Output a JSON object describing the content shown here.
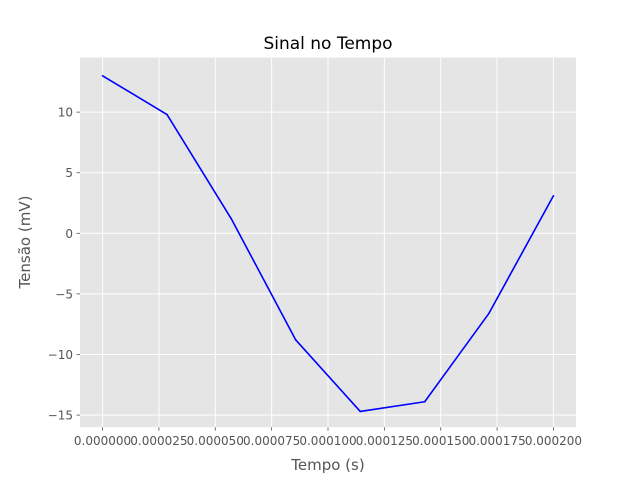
{
  "chart_data": {
    "type": "line",
    "title": "Sinal no Tempo",
    "xlabel": "Tempo (s)",
    "ylabel": "Tensão (mV)",
    "xlim": [
      -1e-05,
      0.00021
    ],
    "ylim": [
      -16,
      14.5
    ],
    "xticks": [
      0.0,
      2.5e-05,
      5e-05,
      7.5e-05,
      0.0001,
      0.000125,
      0.00015,
      0.000175,
      0.0002
    ],
    "xtick_labels": [
      "0.000000",
      "0.000025",
      "0.000050",
      "0.000075",
      "0.000100",
      "0.000125",
      "0.000150",
      "0.000175",
      "0.000200"
    ],
    "yticks": [
      -15,
      -10,
      -5,
      0,
      5,
      10
    ],
    "ytick_labels": [
      "−15",
      "−10",
      "−5",
      "0",
      "5",
      "10"
    ],
    "grid": true,
    "series": [
      {
        "color": "#0000ff",
        "x": [
          0.0,
          2.86e-05,
          5.71e-05,
          8.57e-05,
          0.0001143,
          0.0001429,
          0.0001714,
          0.0002
        ],
        "y": [
          13.0,
          9.8,
          1.2,
          -8.8,
          -14.7,
          -13.9,
          -6.6,
          3.1
        ]
      }
    ],
    "colors": {
      "plot_bg": "#e5e5e5",
      "grid": "#ffffff",
      "text": "#555555"
    }
  }
}
